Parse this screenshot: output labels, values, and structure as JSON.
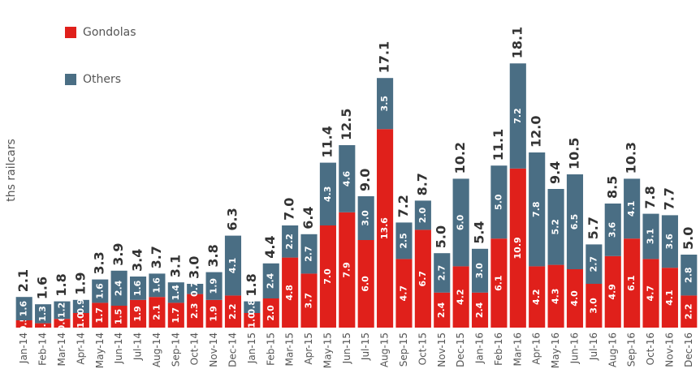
{
  "chart_data": {
    "type": "stacked_bar",
    "y_label": "ths railcars",
    "categories": [
      "Jan-14",
      "Feb-14",
      "Mar-14",
      "Apr-14",
      "May-14",
      "Jun-14",
      "Jul-14",
      "Aug-14",
      "Sep-14",
      "Oct-14",
      "Nov-14",
      "Dec-14",
      "Jan-15",
      "Feb-15",
      "Mar-15",
      "Apr-15",
      "May-15",
      "Jun-15",
      "Jul-15",
      "Aug-15",
      "Sep-15",
      "Oct-15",
      "Nov-15",
      "Dec-15",
      "Jan-16",
      "Feb-16",
      "Mar-16",
      "Apr-16",
      "May-16",
      "Jun-16",
      "Jul-16",
      "Aug-16",
      "Sep-16",
      "Oct-16",
      "Nov-16",
      "Dec-16"
    ],
    "series": [
      {
        "name": "Gondolas",
        "color": "#e0201b",
        "values": [
          0.5,
          0.3,
          0.6,
          1.0,
          1.7,
          1.5,
          1.9,
          2.1,
          1.7,
          2.3,
          1.9,
          2.2,
          1.0,
          2.0,
          4.8,
          3.7,
          7.0,
          7.9,
          6.0,
          13.6,
          4.7,
          6.7,
          2.4,
          4.2,
          2.4,
          6.1,
          10.9,
          4.2,
          4.3,
          4.0,
          3.0,
          4.9,
          6.1,
          4.7,
          4.1,
          2.2
        ],
        "value_labels": [
          "0.5",
          "0.3",
          "0.6",
          "1.0",
          "1.7",
          "1.5",
          "1.9",
          "2.1",
          "1.7",
          "2.3",
          "1.9",
          "2.2",
          "1.0",
          "2.0",
          "4.8",
          "3.7",
          "7.0",
          "7.9",
          "6.0",
          "13.6",
          "4.7",
          "6.7",
          "2.4",
          "4.2",
          "2.4",
          "6.1",
          "10.9",
          "4.2",
          "4.3",
          "4.0",
          "3.0",
          "4.9",
          "6.1",
          "4.7",
          "4.1",
          "2.2"
        ]
      },
      {
        "name": "Others",
        "color": "#4a6e84",
        "values": [
          1.6,
          1.3,
          1.2,
          0.9,
          1.6,
          2.4,
          1.6,
          1.6,
          1.4,
          0.7,
          1.9,
          4.1,
          0.8,
          2.4,
          2.2,
          2.7,
          4.3,
          4.6,
          3.0,
          3.5,
          2.5,
          2.0,
          2.7,
          6.0,
          3.0,
          5.0,
          7.2,
          7.8,
          5.2,
          6.5,
          2.7,
          3.6,
          4.1,
          3.1,
          3.6,
          2.8
        ],
        "value_labels": [
          "1.6",
          "1.3",
          "1.2",
          "0.9",
          "1.6",
          "2.4",
          "1.6",
          "1.6",
          "1.4",
          "0.7",
          "1.9",
          "4.1",
          "0.8",
          "2.4",
          "2.2",
          "2.7",
          "4.3",
          "4.6",
          "3.0",
          "3.5",
          "2.5",
          "2.0",
          "2.7",
          "6.0",
          "3.0",
          "5.0",
          "7.2",
          "7.8",
          "5.2",
          "6.5",
          "2.7",
          "3.6",
          "4.1",
          "3.1",
          "3.6",
          "2.8"
        ]
      }
    ],
    "total_labels": [
      "2.1",
      "1.6",
      "1.8",
      "1.9",
      "3.3",
      "3.9",
      "3.4",
      "3.7",
      "3.1",
      "3.0",
      "3.8",
      "6.3",
      "1.8",
      "4.4",
      "7.0",
      "6.4",
      "11.4",
      "12.5",
      "9.0",
      "17.1",
      "7.2",
      "8.7",
      "5.0",
      "10.2",
      "5.4",
      "11.1",
      "18.1",
      "12.0",
      "9.4",
      "10.5",
      "5.7",
      "8.5",
      "10.3",
      "7.8",
      "7.7",
      "5.0"
    ],
    "ylim": [
      0,
      20
    ]
  }
}
